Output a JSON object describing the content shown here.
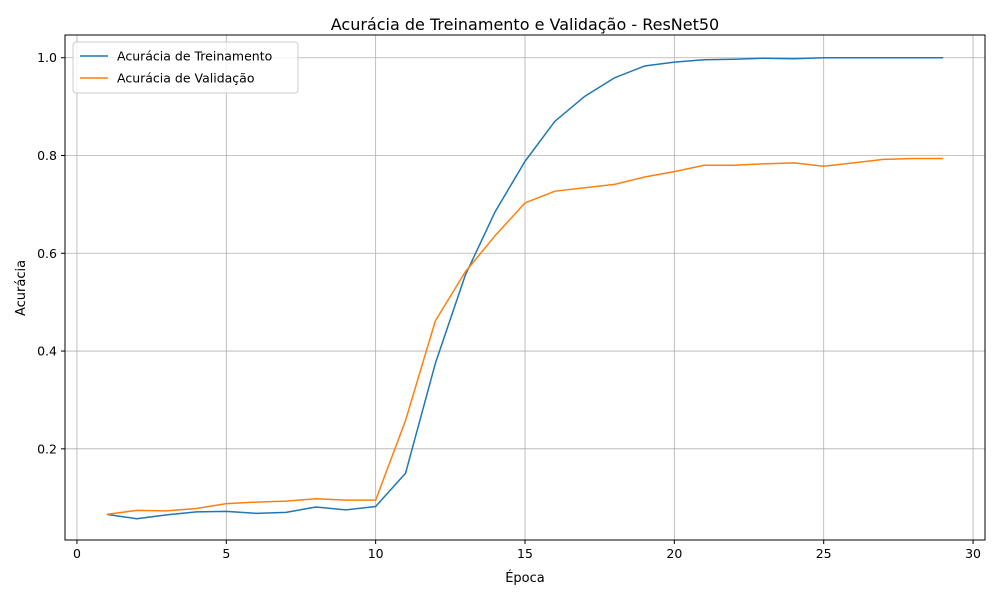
{
  "chart_data": {
    "type": "line",
    "title": "Acurácia de Treinamento e Validação - ResNet50",
    "xlabel": "Época",
    "ylabel": "Acurácia",
    "xlim": [
      -0.4,
      30.4
    ],
    "ylim": [
      0.0135,
      1.0465
    ],
    "xticks": [
      0,
      5,
      10,
      15,
      20,
      25,
      30
    ],
    "yticks": [
      0.2,
      0.4,
      0.6,
      0.8,
      1.0
    ],
    "xtick_labels": [
      "0",
      "5",
      "10",
      "15",
      "20",
      "25",
      "30"
    ],
    "ytick_labels": [
      "0.2",
      "0.4",
      "0.6",
      "0.8",
      "1.0"
    ],
    "grid": true,
    "legend_position": "top-left",
    "x": [
      1,
      2,
      3,
      4,
      5,
      6,
      7,
      8,
      9,
      10,
      11,
      12,
      13,
      14,
      15,
      16,
      17,
      18,
      19,
      20,
      21,
      22,
      23,
      24,
      25,
      26,
      27,
      28,
      29
    ],
    "series": [
      {
        "name": "Acurácia de Treinamento",
        "color": "#1f77b4",
        "values": [
          0.066,
          0.057,
          0.065,
          0.071,
          0.072,
          0.068,
          0.07,
          0.081,
          0.075,
          0.082,
          0.15,
          0.375,
          0.555,
          0.685,
          0.788,
          0.87,
          0.921,
          0.959,
          0.983,
          0.991,
          0.996,
          0.997,
          0.999,
          0.998,
          1.0,
          1.0,
          1.0,
          1.0,
          1.0
        ]
      },
      {
        "name": "Acurácia de Validação",
        "color": "#ff7f0e",
        "values": [
          0.066,
          0.074,
          0.073,
          0.078,
          0.088,
          0.091,
          0.093,
          0.098,
          0.095,
          0.095,
          0.258,
          0.462,
          0.562,
          0.636,
          0.703,
          0.727,
          0.734,
          0.741,
          0.756,
          0.767,
          0.78,
          0.78,
          0.783,
          0.785,
          0.778,
          0.785,
          0.792,
          0.794,
          0.794
        ]
      }
    ]
  }
}
